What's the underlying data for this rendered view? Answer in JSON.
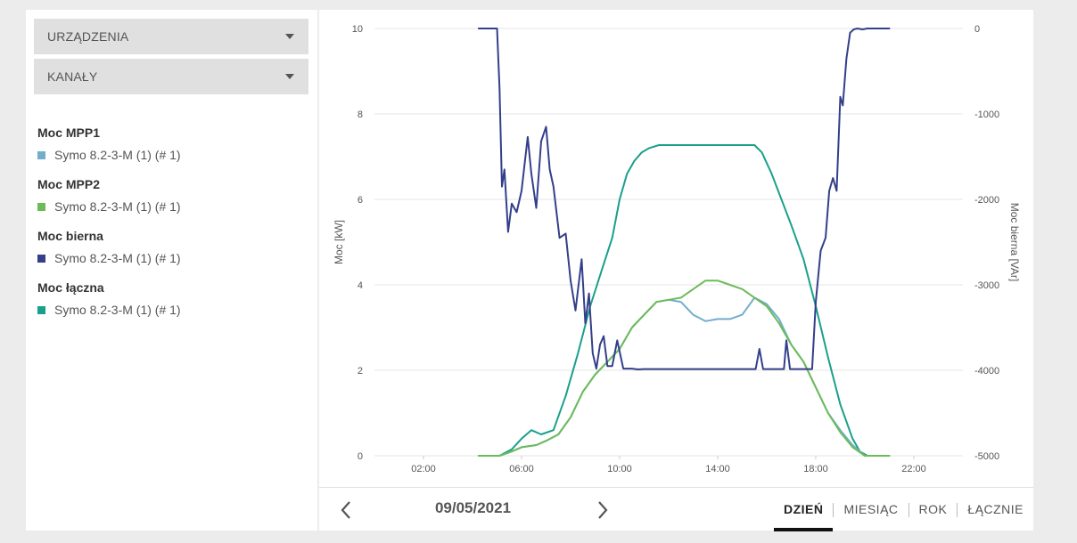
{
  "filters": {
    "devices_label": "URZĄDZENIA",
    "channels_label": "KANAŁY"
  },
  "legend": [
    {
      "title": "Moc MPP1",
      "item": "Symo 8.2-3-M (1) (# 1)",
      "color": "#72aecb"
    },
    {
      "title": "Moc MPP2",
      "item": "Symo 8.2-3-M (1) (# 1)",
      "color": "#6cbb59"
    },
    {
      "title": "Moc bierna",
      "item": "Symo 8.2-3-M (1) (# 1)",
      "color": "#343f8b"
    },
    {
      "title": "Moc łączna",
      "item": "Symo 8.2-3-M (1) (# 1)",
      "color": "#1aa089"
    }
  ],
  "footer": {
    "date": "09/05/2021",
    "tabs": [
      "DZIEŃ",
      "MIESIĄC",
      "ROK",
      "ŁĄCZNIE"
    ],
    "active_tab": "DZIEŃ"
  },
  "chart_data": {
    "type": "line",
    "x_unit": "hour",
    "xlim": [
      0,
      24
    ],
    "x_ticks": [
      "02:00",
      "06:00",
      "10:00",
      "14:00",
      "18:00",
      "22:00"
    ],
    "y_left": {
      "label": "Moc [kW]",
      "lim": [
        0,
        10
      ],
      "ticks": [
        "0",
        "2",
        "4",
        "6",
        "8",
        "10"
      ]
    },
    "y_right": {
      "label": "Moc bierna [VAr]",
      "lim": [
        -5000,
        0
      ],
      "ticks": [
        "-5000",
        "-4000",
        "-3000",
        "-2000",
        "-1000",
        "0"
      ]
    },
    "grid": true,
    "series": [
      {
        "name": "Moc łączna",
        "axis": "left",
        "color": "#1aa089",
        "x": [
          4.25,
          5.1,
          5.6,
          6.0,
          6.4,
          6.8,
          7.3,
          7.8,
          8.3,
          8.8,
          9.3,
          9.7,
          10.0,
          10.3,
          10.6,
          10.9,
          11.2,
          11.6,
          12.5,
          13.5,
          14.5,
          15.5,
          15.8,
          16.2,
          16.6,
          17.0,
          17.5,
          18.0,
          18.5,
          19.0,
          19.5,
          19.8,
          20.1,
          21.0
        ],
        "y": [
          0,
          0,
          0.15,
          0.4,
          0.6,
          0.5,
          0.6,
          1.4,
          2.4,
          3.5,
          4.4,
          5.1,
          6.0,
          6.6,
          6.9,
          7.1,
          7.2,
          7.27,
          7.27,
          7.27,
          7.27,
          7.27,
          7.1,
          6.6,
          6.0,
          5.4,
          4.6,
          3.5,
          2.3,
          1.2,
          0.4,
          0.1,
          0,
          0
        ]
      },
      {
        "name": "Moc MPP1",
        "axis": "left",
        "color": "#72aecb",
        "x": [
          4.25,
          5.1,
          5.6,
          6.0,
          6.6,
          7.0,
          7.5,
          8.0,
          8.5,
          9.0,
          9.5,
          10.0,
          10.5,
          11.0,
          11.5,
          12.0,
          12.5,
          13.0,
          13.5,
          14.0,
          14.5,
          15.0,
          15.5,
          16.0,
          16.5,
          17.0,
          17.5,
          18.0,
          18.5,
          19.0,
          19.5,
          20.0,
          21.0
        ],
        "y": [
          0,
          0,
          0.1,
          0.2,
          0.25,
          0.35,
          0.5,
          0.9,
          1.5,
          1.9,
          2.2,
          2.5,
          3.0,
          3.3,
          3.6,
          3.65,
          3.6,
          3.3,
          3.15,
          3.2,
          3.2,
          3.3,
          3.7,
          3.55,
          3.2,
          2.6,
          2.2,
          1.6,
          1.0,
          0.6,
          0.25,
          0,
          0
        ]
      },
      {
        "name": "Moc MPP2",
        "axis": "left",
        "color": "#6cbb59",
        "x": [
          4.25,
          5.1,
          5.6,
          6.0,
          6.6,
          7.0,
          7.5,
          8.0,
          8.5,
          9.0,
          9.5,
          10.0,
          10.5,
          11.0,
          11.5,
          12.0,
          12.5,
          13.0,
          13.5,
          14.0,
          14.5,
          15.0,
          15.5,
          16.0,
          16.5,
          17.0,
          17.5,
          18.0,
          18.5,
          19.0,
          19.5,
          20.0,
          21.0
        ],
        "y": [
          0,
          0,
          0.1,
          0.2,
          0.25,
          0.35,
          0.5,
          0.9,
          1.5,
          1.9,
          2.2,
          2.5,
          3.0,
          3.3,
          3.6,
          3.65,
          3.7,
          3.9,
          4.1,
          4.1,
          4.0,
          3.9,
          3.7,
          3.5,
          3.1,
          2.6,
          2.2,
          1.6,
          1.0,
          0.55,
          0.2,
          0,
          0
        ]
      },
      {
        "name": "Moc bierna",
        "axis": "right",
        "color": "#343f8b",
        "x": [
          4.25,
          5.0,
          5.1,
          5.2,
          5.3,
          5.45,
          5.6,
          5.8,
          6.0,
          6.25,
          6.4,
          6.6,
          6.8,
          7.0,
          7.15,
          7.3,
          7.55,
          7.8,
          8.0,
          8.2,
          8.45,
          8.6,
          8.75,
          8.9,
          9.05,
          9.2,
          9.35,
          9.5,
          9.7,
          9.9,
          10.15,
          10.5,
          10.75,
          11.0,
          11.5,
          13.0,
          14.0,
          15.0,
          15.55,
          15.7,
          15.85,
          16.5,
          16.7,
          16.8,
          16.95,
          17.2,
          17.5,
          17.85,
          18.0,
          18.2,
          18.4,
          18.55,
          18.7,
          18.85,
          19.0,
          19.1,
          19.25,
          19.4,
          19.55,
          19.7,
          19.9,
          20.1,
          20.5,
          21.0
        ],
        "y": [
          0,
          0,
          -700,
          -1850,
          -1650,
          -2380,
          -2050,
          -2150,
          -1900,
          -1270,
          -1700,
          -2100,
          -1320,
          -1150,
          -1650,
          -1850,
          -2450,
          -2400,
          -2950,
          -3300,
          -2700,
          -3450,
          -3100,
          -3800,
          -3980,
          -3700,
          -3600,
          -3950,
          -3950,
          -3650,
          -3980,
          -3980,
          -3990,
          -3985,
          -3985,
          -3985,
          -3985,
          -3985,
          -3985,
          -3750,
          -3985,
          -3985,
          -3985,
          -3650,
          -3985,
          -3985,
          -3985,
          -3985,
          -3200,
          -2600,
          -2450,
          -1900,
          -1750,
          -1900,
          -800,
          -900,
          -350,
          -50,
          -10,
          0,
          -10,
          0,
          0,
          0
        ]
      }
    ]
  }
}
